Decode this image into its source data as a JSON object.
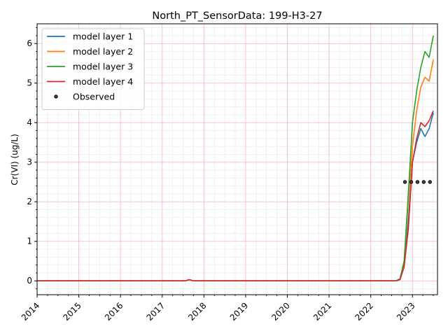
{
  "chart_data": {
    "type": "line",
    "title": "North_PT_SensorData: 199-H3-27",
    "xlabel": "",
    "ylabel": "Cr(VI) (ug/L)",
    "xlim": [
      2014.0,
      2023.6
    ],
    "ylim": [
      -0.35,
      6.5
    ],
    "x_ticks": [
      "2014",
      "2015",
      "2016",
      "2017",
      "2018",
      "2019",
      "2020",
      "2021",
      "2022",
      "2023"
    ],
    "y_ticks": [
      "0",
      "1",
      "2",
      "3",
      "4",
      "5",
      "6"
    ],
    "grid": true,
    "legend_position": "upper-left",
    "series": [
      {
        "name": "model layer 1",
        "color": "#1f77b4",
        "x": [
          2014.0,
          2017.55,
          2017.65,
          2017.75,
          2022.5,
          2022.6,
          2022.7,
          2022.8,
          2022.9,
          2023.0,
          2023.1,
          2023.2,
          2023.3,
          2023.4,
          2023.5
        ],
        "y": [
          0.0,
          0.0,
          0.03,
          0.0,
          0.0,
          0.0,
          0.03,
          0.4,
          1.5,
          3.0,
          3.5,
          3.85,
          3.65,
          3.85,
          4.25
        ]
      },
      {
        "name": "model layer 2",
        "color": "#ff7f0e",
        "x": [
          2014.0,
          2017.55,
          2017.65,
          2017.75,
          2022.5,
          2022.6,
          2022.7,
          2022.8,
          2022.9,
          2023.0,
          2023.1,
          2023.2,
          2023.3,
          2023.4,
          2023.5
        ],
        "y": [
          0.0,
          0.0,
          0.03,
          0.0,
          0.0,
          0.0,
          0.05,
          0.45,
          2.0,
          3.4,
          4.3,
          4.9,
          5.15,
          5.05,
          5.6
        ]
      },
      {
        "name": "model layer 3",
        "color": "#2ca02c",
        "x": [
          2014.0,
          2017.55,
          2017.65,
          2017.75,
          2022.5,
          2022.6,
          2022.7,
          2022.8,
          2022.9,
          2023.0,
          2023.1,
          2023.2,
          2023.3,
          2023.4,
          2023.5
        ],
        "y": [
          0.0,
          0.0,
          0.03,
          0.0,
          0.0,
          0.0,
          0.05,
          0.5,
          2.2,
          4.0,
          4.8,
          5.4,
          5.8,
          5.65,
          6.2
        ]
      },
      {
        "name": "model layer 4",
        "color": "#d62728",
        "x": [
          2014.0,
          2017.55,
          2017.65,
          2017.75,
          2022.5,
          2022.6,
          2022.7,
          2022.8,
          2022.9,
          2023.0,
          2023.1,
          2023.2,
          2023.3,
          2023.4,
          2023.5
        ],
        "y": [
          0.0,
          0.0,
          0.03,
          0.0,
          0.0,
          0.0,
          0.03,
          0.35,
          1.3,
          3.0,
          3.6,
          4.0,
          3.9,
          4.05,
          4.3
        ]
      }
    ],
    "observed": {
      "name": "Observed",
      "x": [
        2022.82,
        2022.97,
        2023.12,
        2023.27,
        2023.42
      ],
      "y": [
        2.5,
        2.5,
        2.5,
        2.5,
        2.5
      ]
    }
  }
}
